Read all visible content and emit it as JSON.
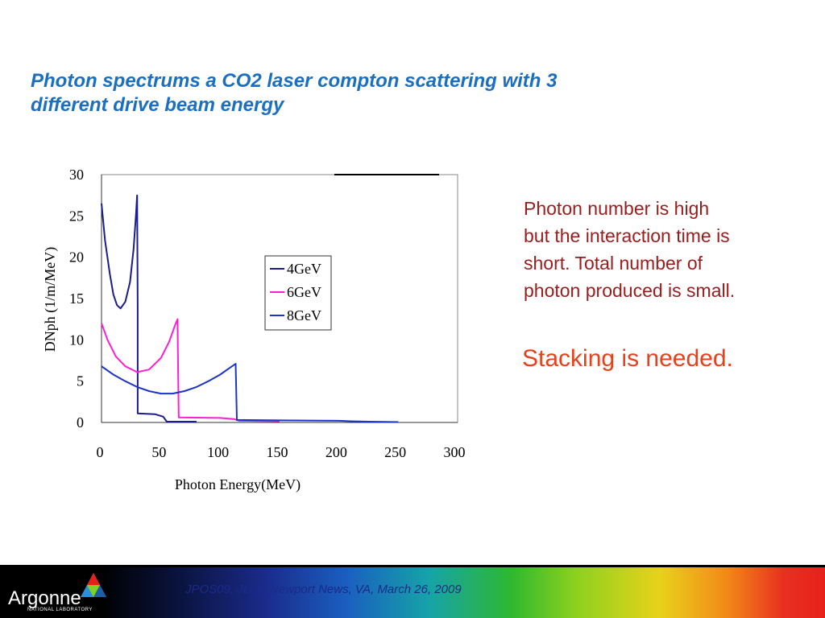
{
  "slide": {
    "title_line1": "Photon spectrums a CO2 laser compton scattering with 3",
    "title_line2": "different drive beam energy",
    "body_lines": [
      "Photon number is high",
      "but the interaction time is",
      "short.   Total number of",
      "photon produced is small."
    ],
    "callout": "Stacking is needed.",
    "footer_text": "JPOS09, JLab, Newport News, VA,  March 26, 2009",
    "logo_text": "Argonne",
    "logo_subtext": "NATIONAL LABORATORY"
  },
  "colors": {
    "title": "#1a6fc2",
    "body_text": "#9b1c1c",
    "callout": "#e8401c",
    "series_4gev": "#1c1c8c",
    "series_6gev": "#ff1fd0",
    "series_8gev": "#1c34c8"
  },
  "chart_data": {
    "type": "line",
    "xlabel": "Photon Energy(MeV)",
    "ylabel": "DNph (1/m/MeV)",
    "xlim": [
      0,
      300
    ],
    "ylim": [
      0,
      30
    ],
    "xticks": [
      "0",
      "50",
      "100",
      "150",
      "200",
      "250",
      "300"
    ],
    "yticks": [
      "0",
      "5",
      "10",
      "15",
      "20",
      "25",
      "30"
    ],
    "grid": false,
    "legend_position": "center-right",
    "series": [
      {
        "name": "4GeV",
        "points": [
          [
            0,
            26.5
          ],
          [
            3,
            22
          ],
          [
            7,
            18
          ],
          [
            10,
            15.5
          ],
          [
            13,
            14.2
          ],
          [
            16,
            13.8
          ],
          [
            20,
            14.6
          ],
          [
            24,
            17
          ],
          [
            27,
            21
          ],
          [
            29,
            25
          ],
          [
            30,
            27.5
          ],
          [
            30.5,
            14
          ],
          [
            30.5,
            1.1
          ],
          [
            45,
            1.0
          ],
          [
            52,
            0.7
          ],
          [
            55,
            0.1
          ],
          [
            80,
            0.1
          ]
        ]
      },
      {
        "name": "6GeV",
        "points": [
          [
            0,
            12
          ],
          [
            5,
            10
          ],
          [
            12,
            8
          ],
          [
            20,
            6.8
          ],
          [
            30,
            6.1
          ],
          [
            40,
            6.4
          ],
          [
            50,
            7.8
          ],
          [
            57,
            9.8
          ],
          [
            62,
            11.8
          ],
          [
            64,
            12.5
          ],
          [
            65,
            0.6
          ],
          [
            100,
            0.55
          ],
          [
            112,
            0.4
          ],
          [
            116,
            0.2
          ],
          [
            150,
            0.15
          ]
        ]
      },
      {
        "name": "8GeV",
        "points": [
          [
            0,
            6.8
          ],
          [
            10,
            5.8
          ],
          [
            20,
            5.0
          ],
          [
            30,
            4.3
          ],
          [
            40,
            3.8
          ],
          [
            50,
            3.5
          ],
          [
            60,
            3.5
          ],
          [
            70,
            3.8
          ],
          [
            80,
            4.3
          ],
          [
            90,
            5.0
          ],
          [
            100,
            5.8
          ],
          [
            108,
            6.6
          ],
          [
            113,
            7.1
          ],
          [
            114,
            0.3
          ],
          [
            150,
            0.25
          ],
          [
            200,
            0.2
          ],
          [
            210,
            0.15
          ],
          [
            225,
            0.1
          ],
          [
            250,
            0.05
          ]
        ]
      }
    ]
  }
}
